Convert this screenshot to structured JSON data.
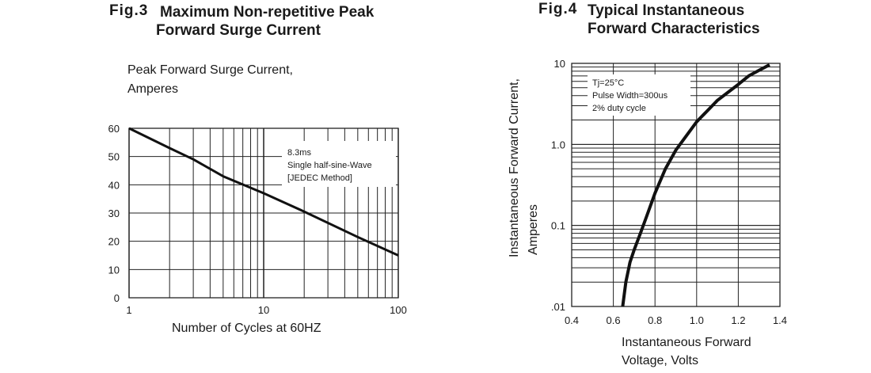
{
  "fig3": {
    "number": "Fig.3",
    "title_line1": "Maximum Non-repetitive Peak",
    "title_line2": "Forward Surge Current",
    "ylabel_line1": "Peak Forward Surge Current,",
    "ylabel_line2": "Amperes",
    "xlabel": "Number of Cycles at 60HZ",
    "annotation": [
      "8.3ms",
      "Single half-sine-Wave",
      "[JEDEC Method]"
    ]
  },
  "fig4": {
    "number": "Fig.4",
    "title_line1": "Typical Instantaneous",
    "title_line2": "Forward Characteristics",
    "ylabel_line1": "Instantaneous Forward Current,",
    "ylabel_line2": "Amperes",
    "xlabel_line1": "Instantaneous Forward",
    "xlabel_line2": "Voltage, Volts",
    "annotation": [
      "Tj=25°C",
      "Pulse Width=300us",
      "2% duty cycle"
    ]
  },
  "chart_data": [
    {
      "type": "line",
      "x_scale": "log",
      "xlim": [
        1,
        100
      ],
      "ylim": [
        0,
        60
      ],
      "xticks": [
        "1",
        "10",
        "100"
      ],
      "yticks": [
        "0",
        "10",
        "20",
        "30",
        "40",
        "50",
        "60"
      ],
      "grid": true,
      "x": [
        1,
        2,
        3,
        5,
        10,
        20,
        50,
        100
      ],
      "y": [
        60,
        53,
        49,
        43,
        37,
        30.5,
        21.5,
        15
      ]
    },
    {
      "type": "line",
      "y_scale": "log",
      "xlim": [
        0.4,
        1.4
      ],
      "ylim": [
        0.01,
        10
      ],
      "xticks": [
        "0.4",
        "0.6",
        "0.8",
        "1.0",
        "1.2",
        "1.4"
      ],
      "yticks": [
        ".01",
        "0.1",
        "1.0",
        "10"
      ],
      "grid": true,
      "x": [
        0.645,
        0.66,
        0.68,
        0.7,
        0.73,
        0.76,
        0.8,
        0.85,
        0.9,
        1.0,
        1.1,
        1.2,
        1.25,
        1.3,
        1.35
      ],
      "y": [
        0.01,
        0.02,
        0.035,
        0.05,
        0.08,
        0.13,
        0.25,
        0.5,
        0.85,
        1.9,
        3.5,
        5.5,
        7.0,
        8.2,
        9.6
      ]
    }
  ]
}
